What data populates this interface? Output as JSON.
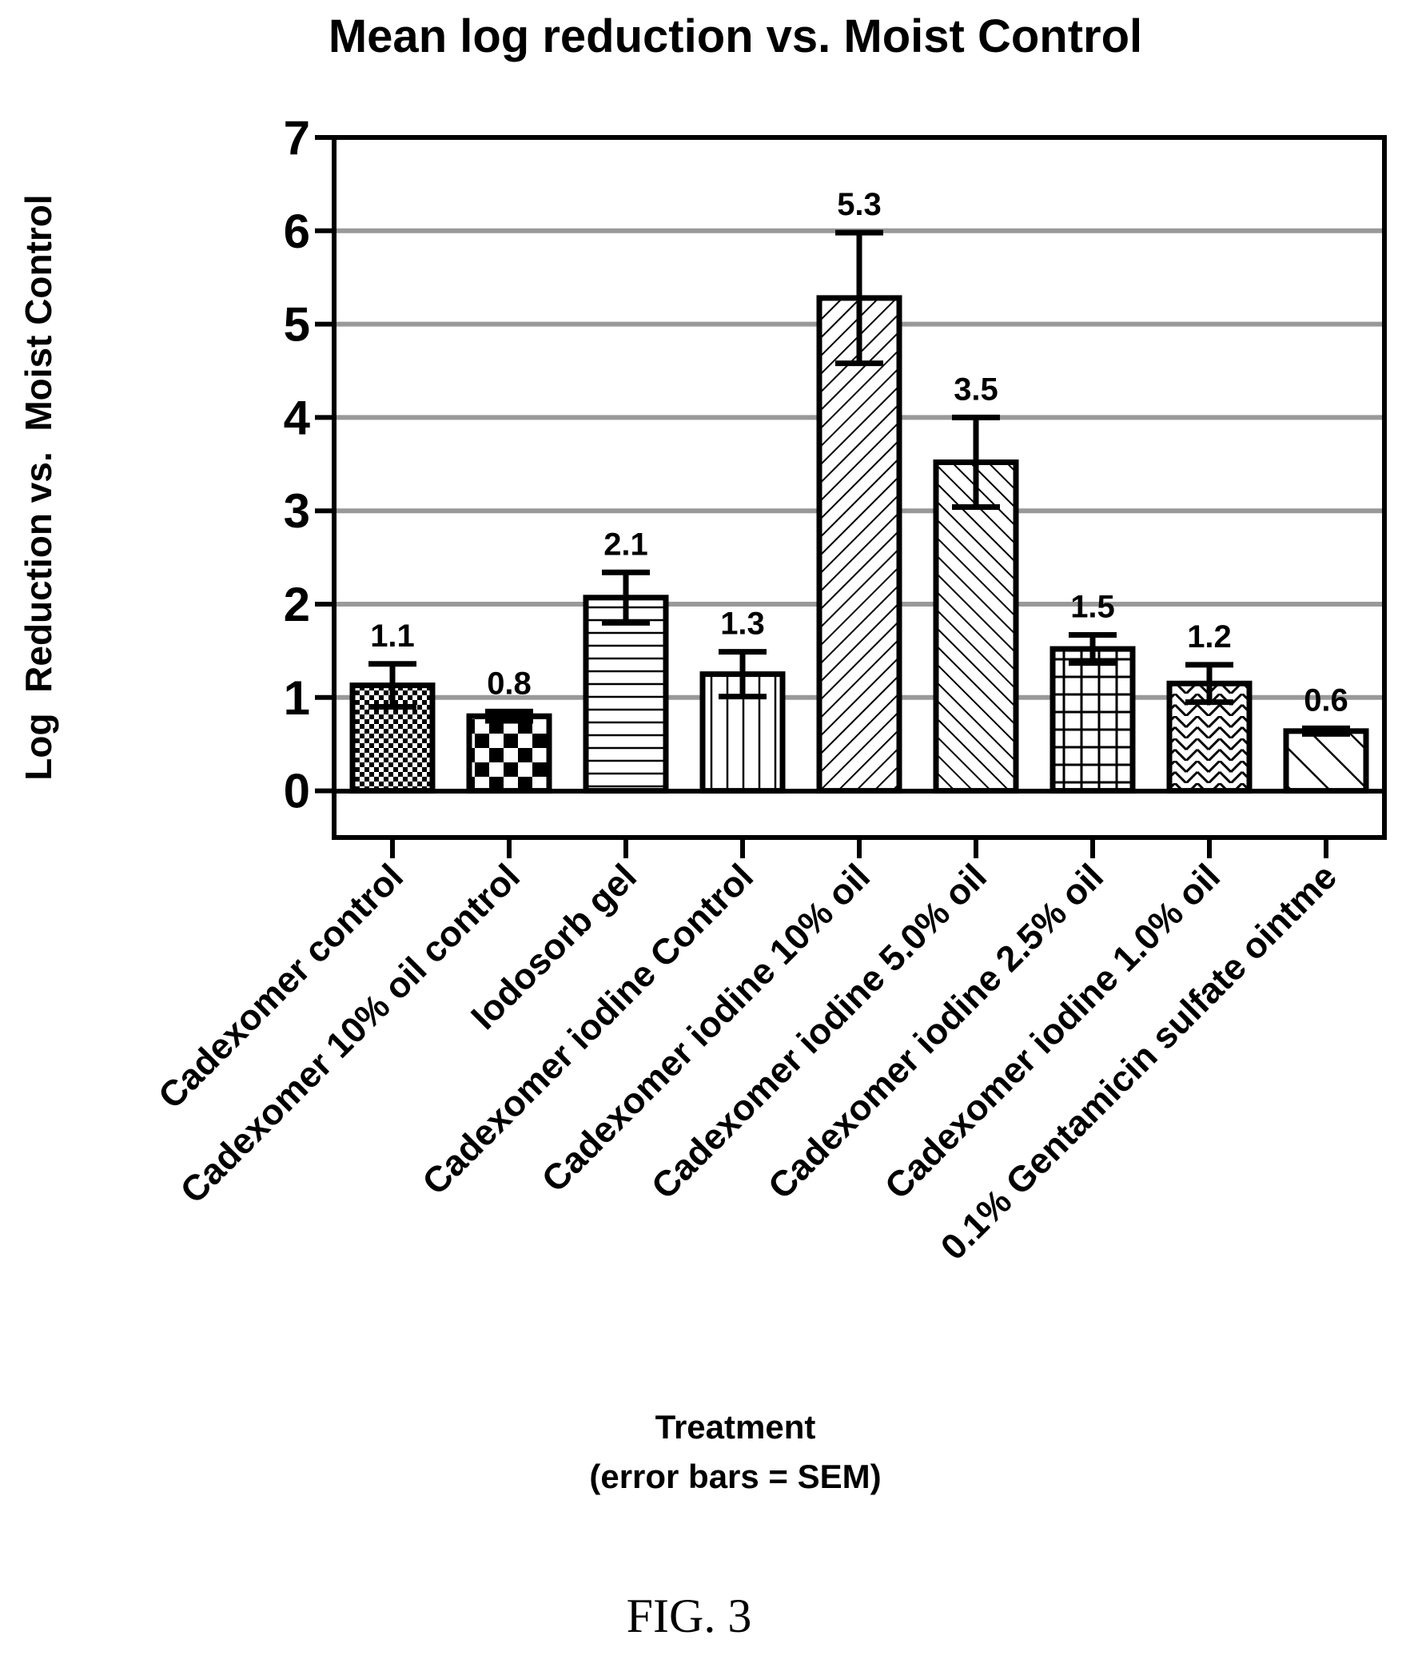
{
  "figure_caption": "FIG. 3",
  "chart_data": {
    "type": "bar",
    "title": "Mean log reduction vs. Moist Control",
    "ylabel": "Log  Reduction vs.  Moist Control",
    "xlabel": "Treatment",
    "xlabel_note": "(error bars = SEM)",
    "ylim": [
      -0.5,
      7
    ],
    "yticks": [
      0,
      1,
      2,
      3,
      4,
      5,
      6,
      7
    ],
    "grid": "horizontal",
    "categories": [
      "Cadexomer control",
      "Cadexomer 10% oil control",
      "Iodosorb gel",
      "Cadexomer iodine Control",
      "Cadexomer iodine 10% oil",
      "Cadexomer iodine 5.0% oil",
      "Cadexomer iodine 2.5% oil",
      "Cadexomer iodine 1.0% oil",
      "0.1% Gentamicin sulfate ointme"
    ],
    "values": [
      1.13,
      0.8,
      2.07,
      1.25,
      5.28,
      3.52,
      1.52,
      1.15,
      0.64
    ],
    "value_labels": [
      "1.1",
      "0.8",
      "2.1",
      "1.3",
      "5.3",
      "3.5",
      "1.5",
      "1.2",
      "0.6"
    ],
    "error_sem": [
      0.23,
      0.05,
      0.27,
      0.24,
      0.7,
      0.48,
      0.15,
      0.2,
      0.03
    ],
    "patterns": [
      "fine-checker",
      "checker",
      "horizontal-lines",
      "vertical-lines",
      "diagonal-up",
      "diagonal-down",
      "grid",
      "herringbone",
      "wide-diagonal-down"
    ]
  }
}
